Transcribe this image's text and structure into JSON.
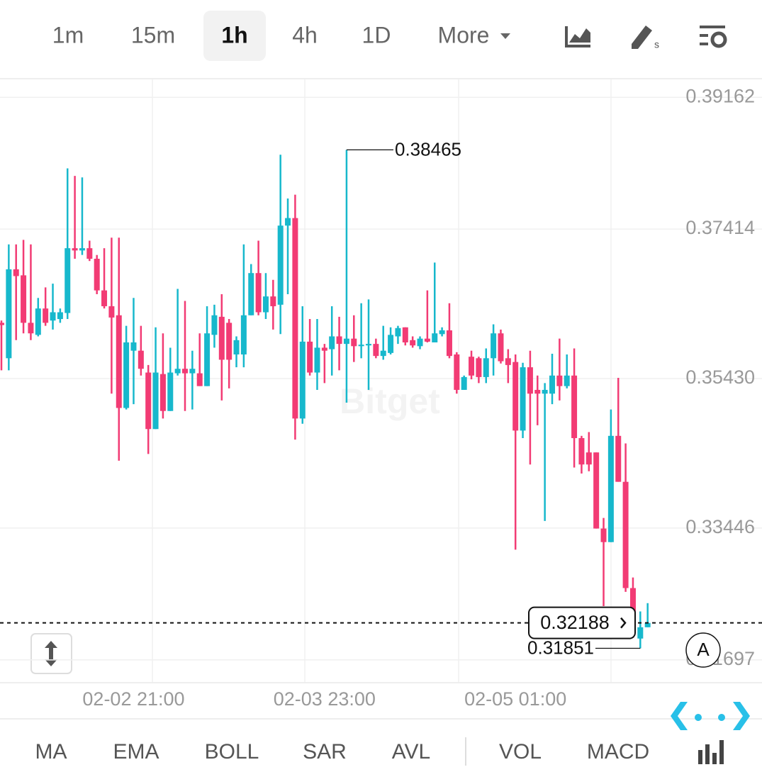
{
  "toolbar": {
    "intervals": [
      "1m",
      "15m",
      "1h",
      "4h",
      "1D"
    ],
    "selected_index": 2,
    "more": "More"
  },
  "indicators": {
    "main": [
      "MA",
      "EMA",
      "BOLL",
      "SAR",
      "AVL"
    ],
    "sub": [
      "VOL",
      "MACD"
    ]
  },
  "watermark": "Bitget",
  "scale_button": "A",
  "chart_data": {
    "type": "candlestick",
    "categories": [
      null,
      null,
      null,
      null,
      null,
      null,
      null,
      null,
      null,
      null,
      null,
      null,
      null,
      null,
      null,
      null,
      null,
      null,
      "02-02 21:00",
      null,
      null,
      null,
      null,
      null,
      null,
      null,
      null,
      null,
      null,
      null,
      null,
      null,
      null,
      null,
      null,
      null,
      null,
      null,
      null,
      null,
      null,
      null,
      null,
      null,
      "02-03 23:00",
      null,
      null,
      null,
      null,
      null,
      null,
      null,
      null,
      null,
      null,
      null,
      null,
      null,
      null,
      null,
      null,
      null,
      null,
      null,
      null,
      null,
      null,
      null,
      null,
      null,
      "02-05 01:00",
      null,
      null,
      null,
      null,
      null,
      null,
      null,
      null,
      null,
      null,
      null,
      null,
      null,
      null,
      null,
      null,
      null,
      null
    ],
    "open": [
      0.3617,
      0.357,
      0.3688,
      0.368,
      0.3617,
      0.3601,
      0.3636,
      0.362,
      0.3622,
      0.363,
      0.3716,
      0.3713,
      0.3716,
      0.3702,
      0.366,
      0.3639,
      0.3627,
      0.3504,
      0.358,
      0.358,
      0.3551,
      0.3476,
      0.3549,
      0.35,
      0.355,
      0.3556,
      0.355,
      0.355,
      0.3533,
      0.3601,
      0.3625,
      0.3617,
      0.3575,
      0.3575,
      0.3627,
      0.3683,
      0.3631,
      0.3652,
      0.3641,
      0.3746,
      0.3756,
      0.349,
      0.3592,
      0.3551,
      0.3584,
      0.3582,
      0.3599,
      0.3589,
      0.3596,
      0.3586,
      0.3587,
      0.3589,
      0.3573,
      0.3577,
      0.3599,
      0.3611,
      0.3594,
      0.3586,
      0.3596,
      0.3591,
      0.3602,
      0.3607,
      0.3575,
      0.3528,
      0.3572,
      0.357,
      0.3545,
      0.357,
      0.3603,
      0.357,
      0.3565,
      0.3474,
      0.3558,
      0.3528,
      0.3523,
      0.3523,
      0.3547,
      0.3533,
      0.3547,
      0.3464,
      0.3445,
      0.3445,
      0.3344,
      0.3326,
      0.3467,
      0.3406,
      0.3265,
      0.3198,
      0.3213
    ],
    "high": [
      0.362,
      0.3721,
      0.3721,
      0.3727,
      0.3721,
      0.365,
      0.3664,
      0.3669,
      0.3636,
      0.3822,
      0.3812,
      0.381,
      0.3726,
      0.3707,
      0.3716,
      0.373,
      0.373,
      0.3613,
      0.365,
      0.3613,
      0.3561,
      0.3611,
      0.3603,
      0.3584,
      0.3662,
      0.3646,
      0.358,
      0.3603,
      0.3639,
      0.3641,
      0.3655,
      0.3622,
      0.3599,
      0.3721,
      0.3695,
      0.3726,
      0.3683,
      0.3674,
      0.384,
      0.3782,
      0.3787,
      0.3639,
      0.3622,
      0.3622,
      0.3589,
      0.3639,
      0.3625,
      0.38465,
      0.3627,
      0.3643,
      0.3648,
      0.3596,
      0.3613,
      0.3611,
      0.3613,
      0.3611,
      0.3599,
      0.3599,
      0.366,
      0.3697,
      0.3611,
      0.3643,
      0.3578,
      0.3547,
      0.358,
      0.3572,
      0.3583,
      0.3615,
      0.3608,
      0.3582,
      0.3575,
      0.3564,
      0.358,
      0.3547,
      0.3537,
      0.3576,
      0.3596,
      0.3575,
      0.3583,
      0.3467,
      0.3472,
      0.3445,
      0.3358,
      0.3502,
      0.3544,
      0.3457,
      0.3279,
      0.3234,
      0.3245
    ],
    "low": [
      0.3554,
      0.3554,
      0.3594,
      0.3603,
      0.3594,
      0.3599,
      0.3613,
      0.3608,
      0.3617,
      0.3622,
      0.3702,
      0.3707,
      0.3699,
      0.3655,
      0.3636,
      0.3523,
      0.3434,
      0.3502,
      0.3509,
      0.3547,
      0.3443,
      0.3476,
      0.349,
      0.35,
      0.3547,
      0.35,
      0.3502,
      0.3533,
      0.3533,
      0.3584,
      0.3514,
      0.353,
      0.3558,
      0.3558,
      0.3627,
      0.3627,
      0.3622,
      0.3608,
      0.3602,
      0.3655,
      0.3462,
      0.3483,
      0.3547,
      0.3528,
      0.3537,
      0.3547,
      0.3554,
      0.3511,
      0.3565,
      0.357,
      0.3528,
      0.357,
      0.3568,
      0.3575,
      0.3589,
      0.3587,
      0.3584,
      0.3582,
      0.3591,
      0.3591,
      0.3599,
      0.357,
      0.3523,
      0.3528,
      0.3542,
      0.3537,
      0.3537,
      0.3547,
      0.3563,
      0.3537,
      0.3316,
      0.3464,
      0.3429,
      0.3481,
      0.3354,
      0.3509,
      0.3514,
      0.353,
      0.3425,
      0.3417,
      0.342,
      0.3344,
      0.3241,
      0.3326,
      0.3406,
      0.326,
      0.3199,
      0.31851,
      0.3213
    ],
    "close": [
      0.3614,
      0.3688,
      0.3679,
      0.3617,
      0.3603,
      0.3636,
      0.3617,
      0.3631,
      0.3631,
      0.3716,
      0.3713,
      0.3716,
      0.3702,
      0.366,
      0.3639,
      0.3624,
      0.3504,
      0.3591,
      0.3591,
      0.3556,
      0.3476,
      0.3551,
      0.35,
      0.3551,
      0.3556,
      0.355,
      0.3556,
      0.3533,
      0.3603,
      0.3627,
      0.3568,
      0.3568,
      0.3594,
      0.3627,
      0.3683,
      0.3631,
      0.3652,
      0.3639,
      0.3746,
      0.3756,
      0.349,
      0.3592,
      0.3551,
      0.3584,
      0.358,
      0.3599,
      0.3589,
      0.3596,
      0.3586,
      0.3588,
      0.3589,
      0.3573,
      0.358,
      0.3601,
      0.361,
      0.3591,
      0.3587,
      0.3596,
      0.3592,
      0.3603,
      0.3607,
      0.3573,
      0.3528,
      0.3545,
      0.3547,
      0.3545,
      0.357,
      0.3603,
      0.3566,
      0.3561,
      0.3474,
      0.3558,
      0.3523,
      0.3523,
      0.3528,
      0.3547,
      0.3533,
      0.3547,
      0.3464,
      0.3429,
      0.3429,
      0.3344,
      0.3326,
      0.3467,
      0.3406,
      0.3265,
      0.3227,
      0.3213,
      0.32188
    ],
    "up_color": "#17b8cc",
    "down_color": "#f23b74",
    "ylim": [
      0.31404,
      0.394
    ],
    "yticks": [
      0.39162,
      0.37414,
      {
        "value": 0.3543,
        "label": "0.35430"
      },
      0.33446,
      0.31697
    ],
    "grid": true,
    "high_label": 0.38465,
    "low_label": 0.31851,
    "last_price": 0.32188
  }
}
